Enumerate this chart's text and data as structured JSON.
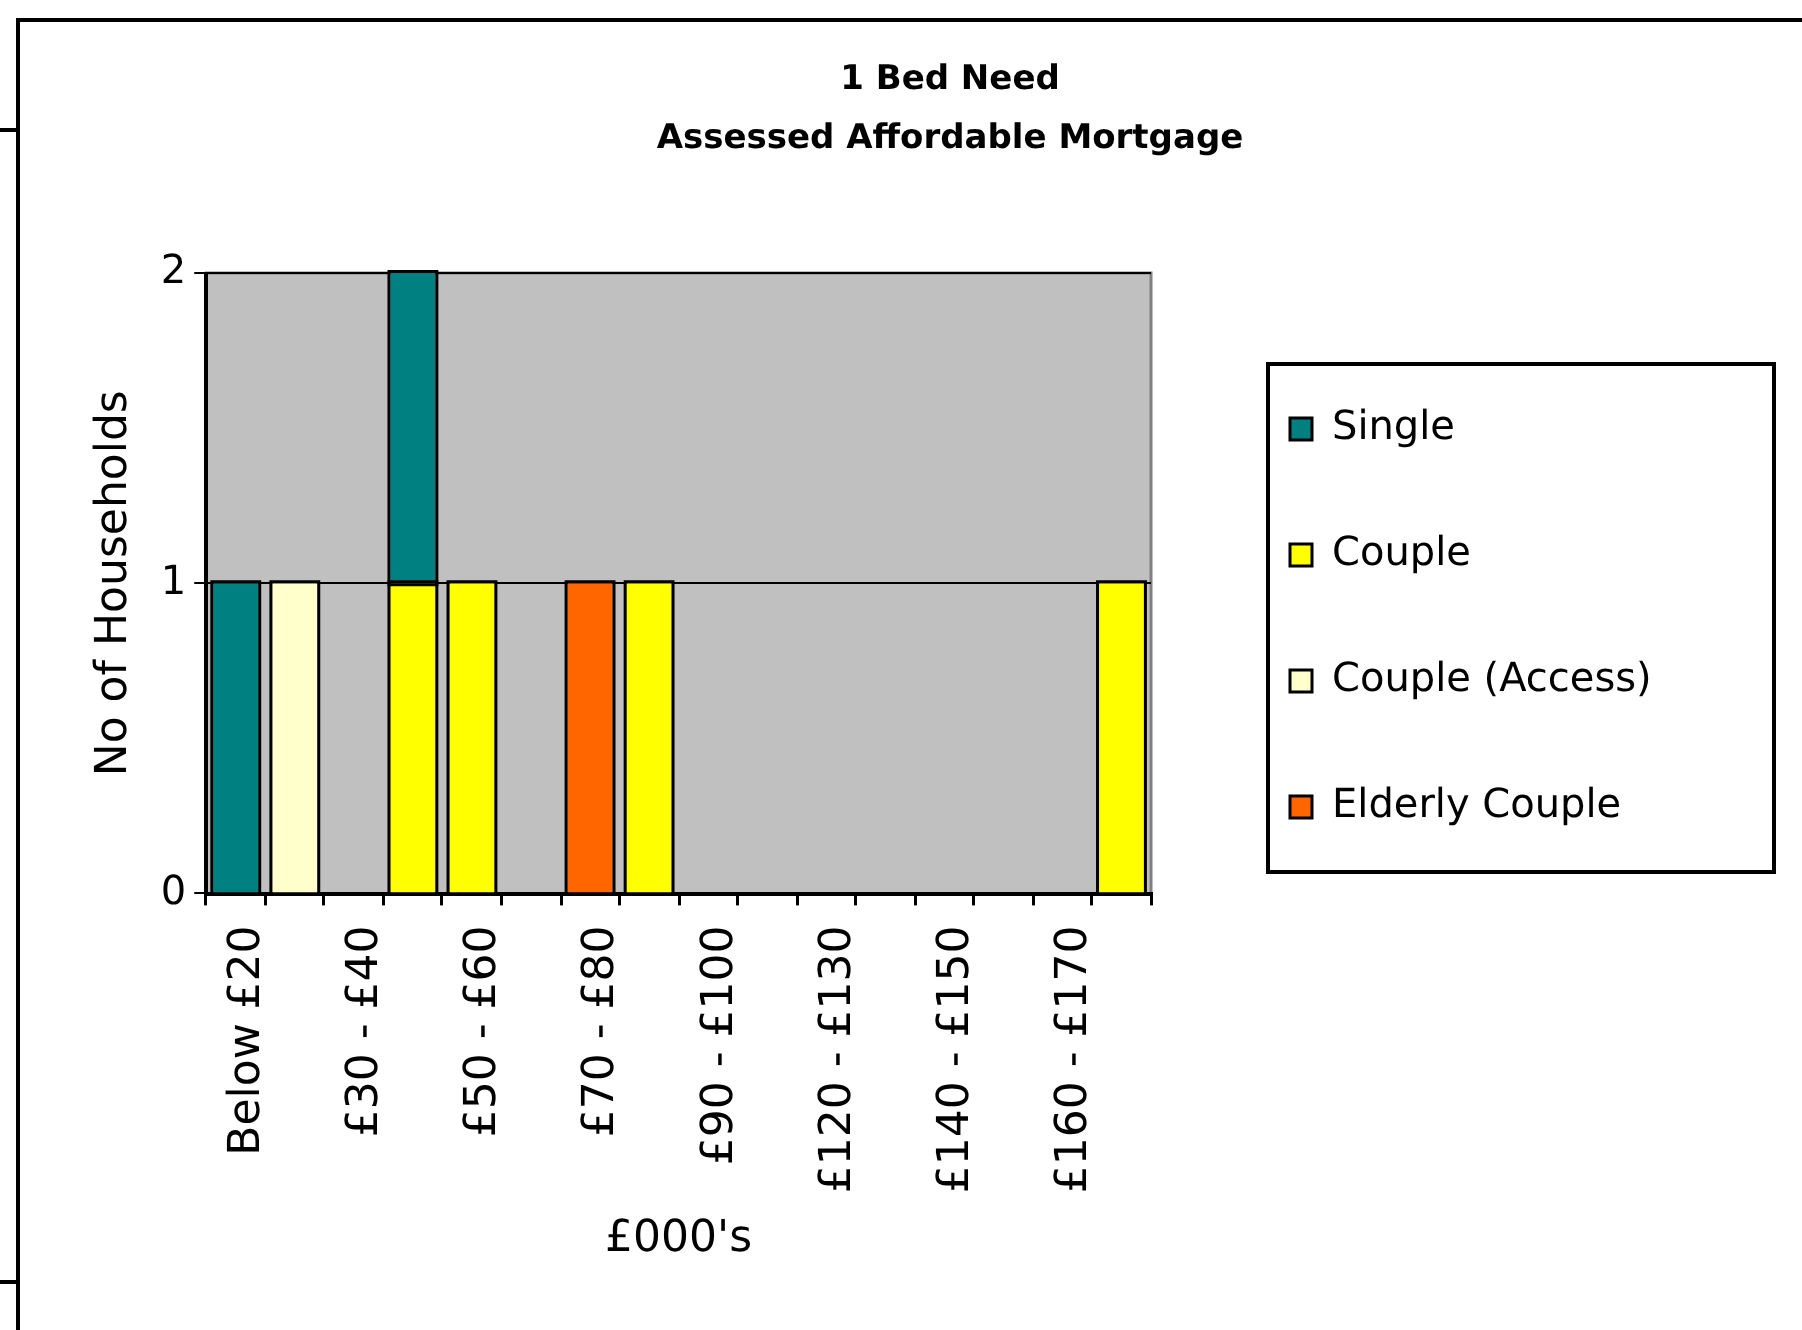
{
  "chart_data": {
    "type": "bar",
    "title": "1 Bed Need\nAssessed Affordable Mortgage",
    "xlabel": "£000's",
    "ylabel": "No of Households",
    "categories": [
      "Below £20",
      null,
      "£30 - £40",
      null,
      "£50 - £60",
      null,
      "£70 - £80",
      null,
      "£90 - £100",
      null,
      "£120 - £130",
      null,
      "£140 - £150",
      null,
      "£160 - £170",
      null
    ],
    "series": [
      {
        "name": "Elderly Couple",
        "color": "#ff6600",
        "values": [
          null,
          null,
          null,
          null,
          null,
          null,
          1,
          null,
          null,
          null,
          null,
          null,
          null,
          null,
          null,
          null
        ]
      },
      {
        "name": "Couple (Access)",
        "color": "#ffffcc",
        "values": [
          null,
          1,
          null,
          null,
          null,
          null,
          null,
          null,
          null,
          null,
          null,
          null,
          null,
          null,
          null,
          null
        ]
      },
      {
        "name": "Couple",
        "color": "#ffff00",
        "values": [
          null,
          null,
          null,
          1,
          1,
          null,
          null,
          1,
          null,
          null,
          null,
          null,
          null,
          null,
          null,
          1
        ]
      },
      {
        "name": "Single",
        "color": "#008080",
        "values": [
          1,
          null,
          null,
          1,
          null,
          null,
          null,
          null,
          null,
          null,
          null,
          null,
          null,
          null,
          null,
          null
        ]
      }
    ],
    "stacked": true,
    "ylim": [
      0,
      2
    ],
    "yticks": [
      0,
      1,
      2
    ],
    "grid": "y",
    "legend": "right"
  }
}
